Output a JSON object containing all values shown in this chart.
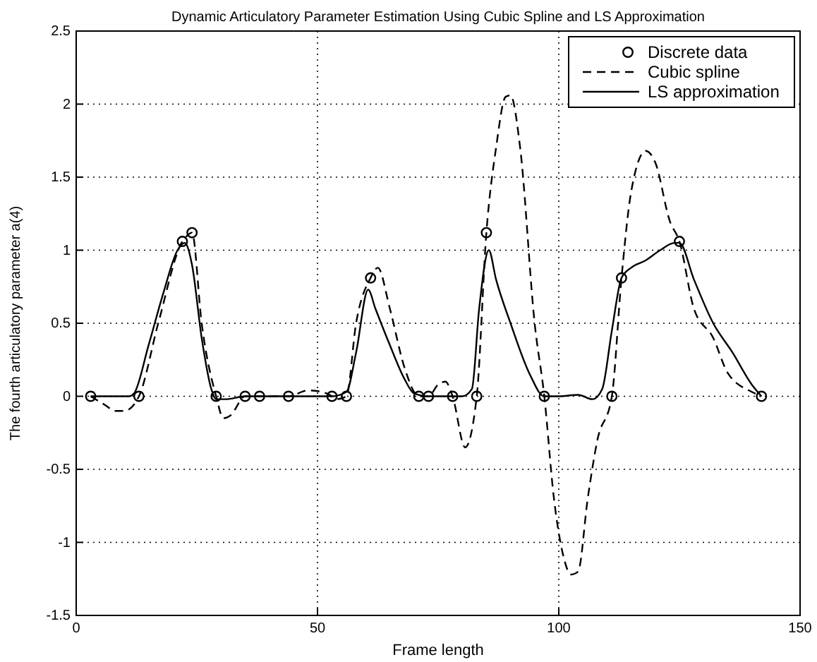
{
  "chart_data": {
    "type": "line",
    "title": "Dynamic Articulatory Parameter Estimation Using Cubic Spline and LS Approximation",
    "xlabel": "Frame length",
    "ylabel": "The fourth articulatory parameter a(4)",
    "xlim": [
      0,
      150
    ],
    "ylim": [
      -1.5,
      2.5
    ],
    "xticks": [
      0,
      50,
      100,
      150
    ],
    "yticks": [
      -1.5,
      -1,
      -0.5,
      0,
      0.5,
      1,
      1.5,
      2,
      2.5
    ],
    "grid": true,
    "legend": "top right",
    "series": [
      {
        "name": "Discrete data",
        "type": "scatter",
        "marker": "circle",
        "color": "#000000",
        "x": [
          3,
          13,
          22,
          24,
          29,
          35,
          38,
          44,
          53,
          56,
          61,
          71,
          73,
          78,
          83,
          85,
          97,
          111,
          113,
          125,
          142
        ],
        "values": [
          0,
          0,
          1.06,
          1.12,
          0,
          0,
          0,
          0,
          0,
          0,
          0.81,
          0,
          0,
          0,
          0,
          1.12,
          0,
          0,
          0.81,
          1.06,
          0
        ]
      },
      {
        "name": "Cubic spline",
        "line_style": "dashed",
        "color": "#000000",
        "x": [
          3,
          6,
          8,
          10,
          13,
          17,
          22,
          23,
          24,
          26,
          29,
          30.5,
          32,
          35,
          38,
          44,
          48,
          51,
          53,
          54,
          56,
          58,
          61,
          62.5,
          65,
          68,
          71,
          73,
          75,
          76.5,
          78,
          80.6,
          83,
          85,
          87,
          89,
          90,
          92,
          95,
          97,
          99,
          101,
          102.5,
          104,
          106,
          108,
          111,
          113,
          115,
          118,
          120,
          123,
          125,
          128,
          132,
          135,
          140,
          142
        ],
        "values": [
          0,
          -0.06,
          -0.1,
          -0.1,
          0,
          0.5,
          1.06,
          1.1,
          1.12,
          0.5,
          0,
          -0.15,
          -0.13,
          0,
          0,
          0,
          0.04,
          0.03,
          0,
          -0.02,
          0,
          0.5,
          0.81,
          0.88,
          0.6,
          0.2,
          0,
          0,
          0.08,
          0.1,
          0,
          -0.35,
          0,
          1.12,
          1.7,
          2.05,
          2.06,
          1.7,
          0.5,
          0,
          -0.7,
          -1.1,
          -1.22,
          -1.2,
          -0.7,
          -0.3,
          0,
          0.81,
          1.4,
          1.68,
          1.6,
          1.2,
          1.06,
          0.6,
          0.4,
          0.16,
          0.03,
          0
        ]
      },
      {
        "name": "LS approximation",
        "line_style": "solid",
        "color": "#000000",
        "x": [
          3,
          11,
          12,
          15,
          18,
          21,
          22.5,
          24,
          26,
          28,
          29,
          31,
          35,
          50,
          53,
          56,
          58,
          60.5,
          62,
          65,
          68,
          70,
          73,
          78,
          80,
          82,
          83.5,
          85.5,
          87,
          90,
          94,
          97,
          100,
          104,
          107,
          109,
          111,
          113,
          115,
          118,
          121,
          124,
          125,
          128,
          132,
          136,
          140,
          142
        ],
        "values": [
          0,
          0,
          0.02,
          0.35,
          0.7,
          1.0,
          1.05,
          0.9,
          0.4,
          0.05,
          -0.02,
          -0.02,
          0,
          0,
          0,
          0.03,
          0.3,
          0.73,
          0.6,
          0.35,
          0.12,
          0.02,
          0,
          0,
          0,
          0.05,
          0.6,
          1.0,
          0.8,
          0.5,
          0.15,
          0,
          0,
          0.01,
          -0.02,
          0.05,
          0.45,
          0.81,
          0.88,
          0.93,
          1.0,
          1.05,
          1.05,
          0.8,
          0.5,
          0.3,
          0.08,
          0
        ]
      }
    ]
  }
}
